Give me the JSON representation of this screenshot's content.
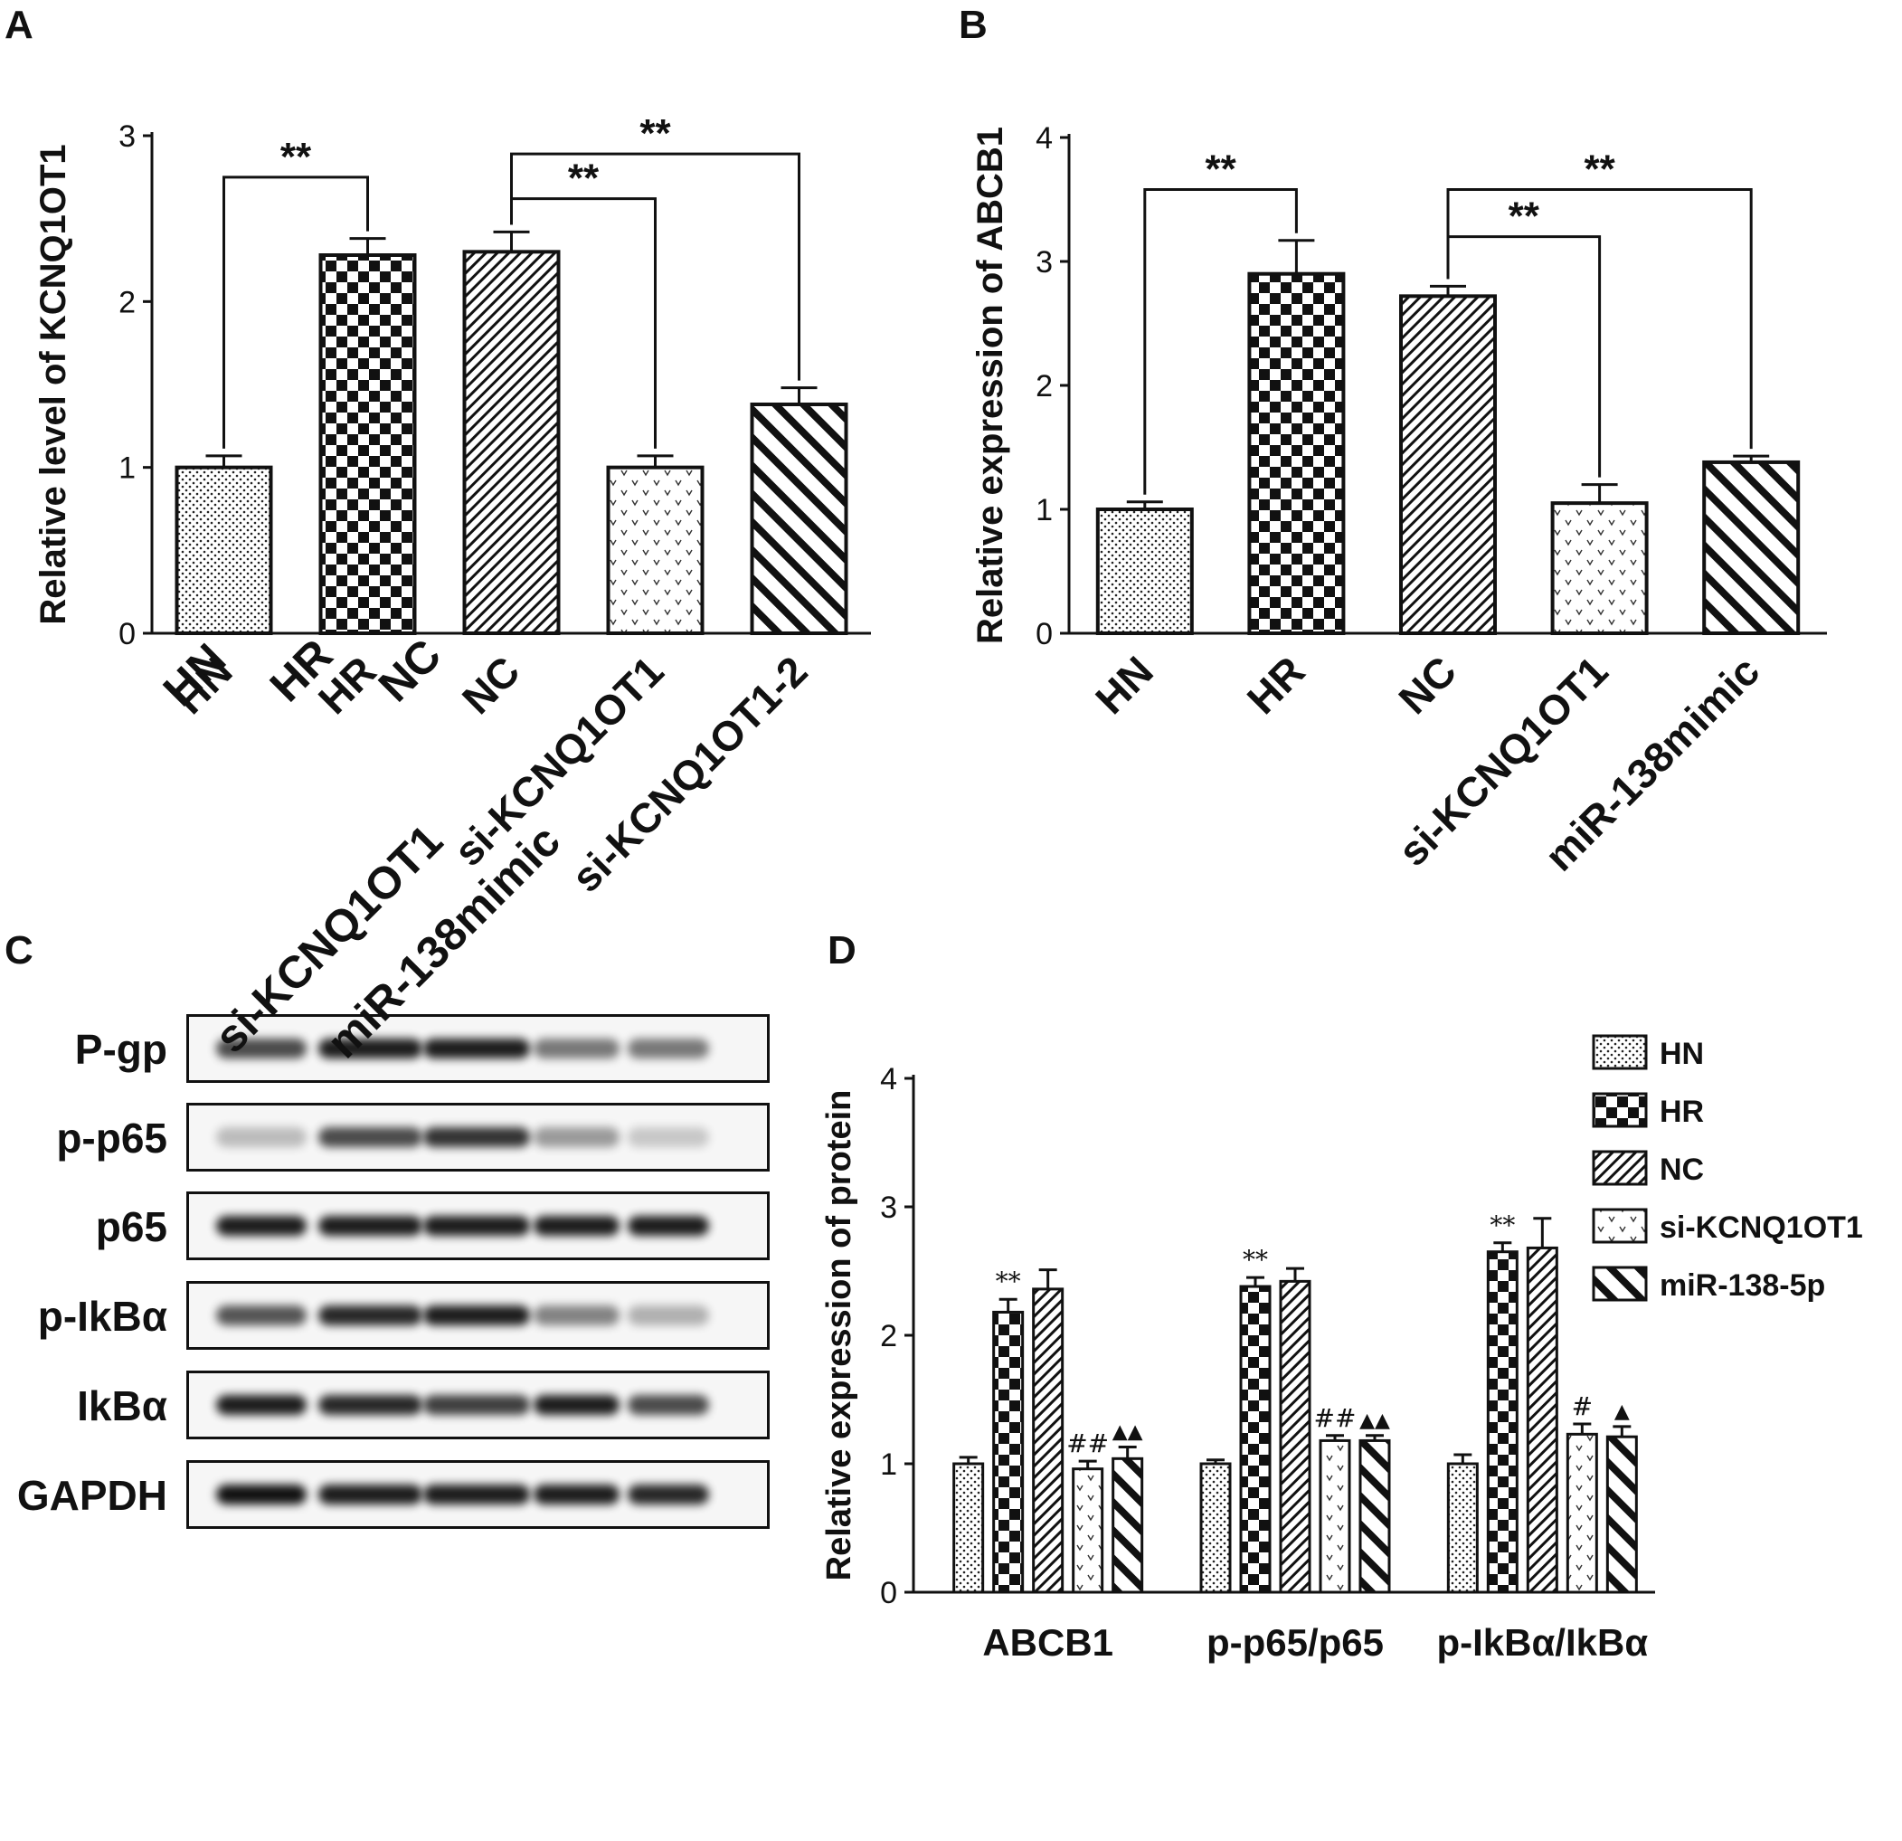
{
  "panels": {
    "A": {
      "label": "A"
    },
    "B": {
      "label": "B"
    },
    "C": {
      "label": "C"
    },
    "D": {
      "label": "D"
    }
  },
  "blot": {
    "rows": [
      {
        "label": "P-gp",
        "intensity": [
          0.75,
          0.95,
          0.95,
          0.55,
          0.55
        ]
      },
      {
        "label": "p-p65",
        "intensity": [
          0.25,
          0.75,
          0.85,
          0.4,
          0.2
        ]
      },
      {
        "label": "p65",
        "intensity": [
          0.95,
          0.95,
          0.95,
          0.95,
          0.95
        ]
      },
      {
        "label": "p-IkBα",
        "intensity": [
          0.7,
          0.9,
          0.95,
          0.5,
          0.3
        ]
      },
      {
        "label": "IkBα",
        "intensity": [
          0.95,
          0.9,
          0.8,
          0.95,
          0.75
        ]
      },
      {
        "label": "GAPDH",
        "intensity": [
          1.0,
          0.95,
          0.95,
          0.95,
          0.9
        ]
      }
    ],
    "lanes": [
      "HN",
      "HR",
      "NC",
      "si-KCNQ1OT1",
      "miR-138mimic"
    ]
  },
  "chart_data": [
    {
      "panel": "A",
      "type": "bar",
      "categories": [
        "HN",
        "HR",
        "NC",
        "si-KCNQ1OT1",
        "si-KCNQ1OT1-2"
      ],
      "values": [
        1.0,
        2.28,
        2.3,
        1.0,
        1.38
      ],
      "errors": [
        0.07,
        0.1,
        0.12,
        0.07,
        0.1
      ],
      "patterns": [
        "dots",
        "checker",
        "diag",
        "hearts",
        "bigdiag"
      ],
      "ylabel": "Relative level  of KCNQ1OT1",
      "ylim": [
        0,
        3
      ],
      "yticks": [
        0,
        1,
        2,
        3
      ],
      "significance": [
        {
          "from": 0,
          "to": 1,
          "label": "**"
        },
        {
          "from": 2,
          "to": 3,
          "label": "**"
        },
        {
          "from": 2,
          "to": 4,
          "label": "**"
        }
      ]
    },
    {
      "panel": "B",
      "type": "bar",
      "categories": [
        "HN",
        "HR",
        "NC",
        "si-KCNQ1OT1",
        "miR-138mimic"
      ],
      "values": [
        1.0,
        2.9,
        2.72,
        1.05,
        1.38
      ],
      "errors": [
        0.06,
        0.27,
        0.08,
        0.15,
        0.05
      ],
      "patterns": [
        "dots",
        "checker",
        "diag",
        "hearts",
        "bigdiag"
      ],
      "ylabel": "Relative expression of ABCB1",
      "ylim": [
        0,
        4
      ],
      "yticks": [
        0,
        1,
        2,
        3,
        4
      ],
      "significance": [
        {
          "from": 0,
          "to": 1,
          "label": "**"
        },
        {
          "from": 2,
          "to": 3,
          "label": "**"
        },
        {
          "from": 2,
          "to": 4,
          "label": "**"
        }
      ]
    },
    {
      "panel": "D",
      "type": "bar",
      "categories": [
        "ABCB1",
        "p-p65/p65",
        "p-IkBα/IkBα"
      ],
      "ylabel": "Relative expression  of protein",
      "ylim": [
        0,
        4
      ],
      "yticks": [
        0,
        1,
        2,
        3,
        4
      ],
      "legend_position": "top-right",
      "series": [
        {
          "name": "HN",
          "pattern": "dots",
          "values": [
            1.0,
            1.0,
            1.0
          ],
          "errors": [
            0.05,
            0.03,
            0.07
          ],
          "marks": [
            "",
            "",
            ""
          ]
        },
        {
          "name": "HR",
          "pattern": "checker",
          "values": [
            2.18,
            2.38,
            2.65
          ],
          "errors": [
            0.1,
            0.07,
            0.07
          ],
          "marks": [
            "**",
            "**",
            "**"
          ]
        },
        {
          "name": "NC",
          "pattern": "diag",
          "values": [
            2.36,
            2.42,
            2.68
          ],
          "errors": [
            0.15,
            0.1,
            0.23
          ],
          "marks": [
            "",
            "",
            ""
          ]
        },
        {
          "name": "si-KCNQ1OT1",
          "pattern": "hearts",
          "values": [
            0.96,
            1.18,
            1.23
          ],
          "errors": [
            0.06,
            0.04,
            0.08
          ],
          "marks": [
            "##",
            "##",
            "#"
          ]
        },
        {
          "name": "miR-138-5p",
          "pattern": "bigdiag",
          "values": [
            1.04,
            1.18,
            1.21
          ],
          "errors": [
            0.09,
            0.04,
            0.08
          ],
          "marks": [
            "▲▲",
            "▲▲",
            "▲"
          ]
        }
      ]
    }
  ]
}
